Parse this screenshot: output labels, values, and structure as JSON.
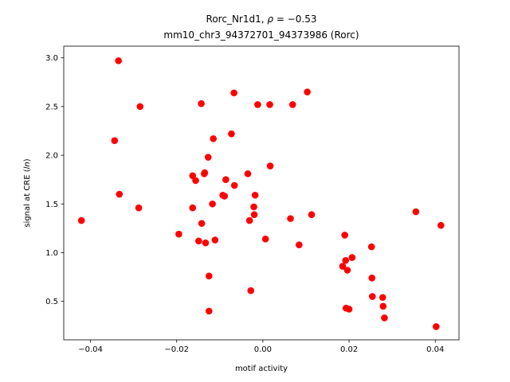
{
  "chart_data": {
    "type": "scatter",
    "title_line1_prefix": "Rorc_Nr1d1, ",
    "title_line1_rho_symbol": "ρ",
    "title_line1_rho_value": " = −0.53",
    "title_line2": "mm10_chr3_94372701_94373986 (Rorc)",
    "xlabel": "motif activity",
    "ylabel_prefix": "signal at CRE (",
    "ylabel_italic": "ln",
    "ylabel_suffix": ")",
    "xlim": [
      -0.0462,
      0.0455
    ],
    "ylim": [
      0.105,
      3.12
    ],
    "xticks": [
      -0.04,
      -0.02,
      0.0,
      0.02,
      0.04
    ],
    "xtick_labels": [
      "−0.04",
      "−0.02",
      "0.00",
      "0.02",
      "0.04"
    ],
    "yticks": [
      0.5,
      1.0,
      1.5,
      2.0,
      2.5,
      3.0
    ],
    "ytick_labels": [
      "0.5",
      "1.0",
      "1.5",
      "2.0",
      "2.5",
      "3.0"
    ],
    "grid": false,
    "marker_color": "#ff0000",
    "points": [
      [
        -0.0421,
        1.33
      ],
      [
        -0.0335,
        2.97
      ],
      [
        -0.0344,
        2.15
      ],
      [
        -0.0333,
        1.6
      ],
      [
        -0.0285,
        2.5
      ],
      [
        -0.0288,
        1.46
      ],
      [
        -0.0195,
        1.19
      ],
      [
        -0.0163,
        1.79
      ],
      [
        -0.0163,
        1.46
      ],
      [
        -0.0156,
        1.74
      ],
      [
        -0.0149,
        1.12
      ],
      [
        -0.0143,
        2.53
      ],
      [
        -0.0142,
        1.3
      ],
      [
        -0.0136,
        1.81
      ],
      [
        -0.0135,
        1.82
      ],
      [
        -0.0133,
        1.1
      ],
      [
        -0.0127,
        1.98
      ],
      [
        -0.0125,
        0.76
      ],
      [
        -0.0125,
        0.4
      ],
      [
        -0.0117,
        1.5
      ],
      [
        -0.0115,
        2.17
      ],
      [
        -0.0111,
        1.13
      ],
      [
        -0.0093,
        1.59
      ],
      [
        -0.0089,
        1.58
      ],
      [
        -0.0086,
        1.75
      ],
      [
        -0.0073,
        2.22
      ],
      [
        -0.0067,
        2.64
      ],
      [
        -0.0066,
        1.69
      ],
      [
        -0.0035,
        1.81
      ],
      [
        -0.0031,
        1.33
      ],
      [
        -0.0028,
        0.61
      ],
      [
        -0.0021,
        1.47
      ],
      [
        -0.002,
        1.39
      ],
      [
        -0.0018,
        1.59
      ],
      [
        -0.0012,
        2.52
      ],
      [
        0.0006,
        1.14
      ],
      [
        0.0016,
        2.52
      ],
      [
        0.0017,
        1.89
      ],
      [
        0.0064,
        1.35
      ],
      [
        0.0069,
        2.52
      ],
      [
        0.0084,
        1.08
      ],
      [
        0.0103,
        2.65
      ],
      [
        0.0113,
        1.39
      ],
      [
        0.0185,
        0.86
      ],
      [
        0.019,
        1.18
      ],
      [
        0.0192,
        0.92
      ],
      [
        0.0193,
        0.43
      ],
      [
        0.0196,
        0.82
      ],
      [
        0.02,
        0.42
      ],
      [
        0.0207,
        0.95
      ],
      [
        0.0252,
        1.06
      ],
      [
        0.0253,
        0.74
      ],
      [
        0.0254,
        0.55
      ],
      [
        0.0278,
        0.54
      ],
      [
        0.0279,
        0.45
      ],
      [
        0.0282,
        0.33
      ],
      [
        0.0355,
        1.42
      ],
      [
        0.0402,
        0.24
      ],
      [
        0.0413,
        1.28
      ]
    ]
  }
}
